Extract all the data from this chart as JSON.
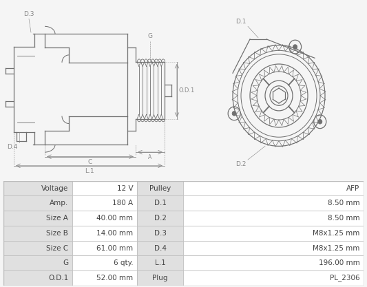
{
  "table_rows": [
    [
      "Voltage",
      "12 V",
      "Pulley",
      "AFP"
    ],
    [
      "Amp.",
      "180 A",
      "D.1",
      "8.50 mm"
    ],
    [
      "Size A",
      "40.00 mm",
      "D.2",
      "8.50 mm"
    ],
    [
      "Size B",
      "14.00 mm",
      "D.3",
      "M8x1.25 mm"
    ],
    [
      "Size C",
      "61.00 mm",
      "D.4",
      "M8x1.25 mm"
    ],
    [
      "G",
      "6 qty.",
      "L.1",
      "196.00 mm"
    ],
    [
      "O.D.1",
      "52.00 mm",
      "Plug",
      "PL_2306"
    ]
  ],
  "col_label_bg": "#e0e0e0",
  "col_value_bg": "#ffffff",
  "table_border_color": "#bbbbbb",
  "font_color": "#444444",
  "bg_color": "#f5f5f5",
  "line_color": "#707070",
  "dim_color": "#888888"
}
